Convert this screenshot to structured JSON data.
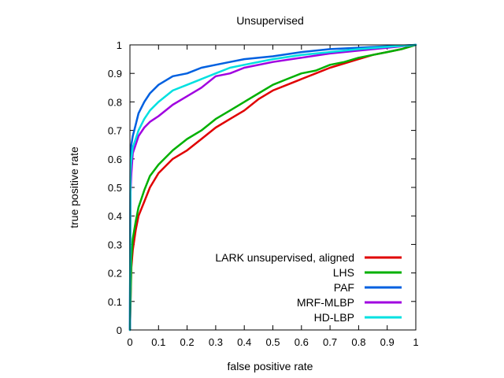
{
  "chart_data": {
    "type": "line",
    "title": "Unsupervised",
    "xlabel": "false positive rate",
    "ylabel": "true positive rate",
    "xlim": [
      0,
      1
    ],
    "ylim": [
      0,
      1
    ],
    "xticks": [
      "0",
      "0.1",
      "0.2",
      "0.3",
      "0.4",
      "0.5",
      "0.6",
      "0.7",
      "0.8",
      "0.9",
      "1"
    ],
    "yticks": [
      "0",
      "0.1",
      "0.2",
      "0.3",
      "0.4",
      "0.5",
      "0.6",
      "0.7",
      "0.8",
      "0.9",
      "1"
    ],
    "grid": false,
    "legend_position": "bottom-right",
    "series": [
      {
        "name": "LARK unsupervised, aligned",
        "color": "#e00000",
        "points": [
          [
            0,
            0
          ],
          [
            0.005,
            0.22
          ],
          [
            0.01,
            0.28
          ],
          [
            0.02,
            0.35
          ],
          [
            0.03,
            0.4
          ],
          [
            0.05,
            0.45
          ],
          [
            0.07,
            0.5
          ],
          [
            0.1,
            0.55
          ],
          [
            0.15,
            0.6
          ],
          [
            0.2,
            0.63
          ],
          [
            0.25,
            0.67
          ],
          [
            0.3,
            0.71
          ],
          [
            0.35,
            0.74
          ],
          [
            0.4,
            0.77
          ],
          [
            0.45,
            0.81
          ],
          [
            0.5,
            0.84
          ],
          [
            0.55,
            0.86
          ],
          [
            0.6,
            0.88
          ],
          [
            0.65,
            0.9
          ],
          [
            0.7,
            0.92
          ],
          [
            0.75,
            0.935
          ],
          [
            0.8,
            0.95
          ],
          [
            0.85,
            0.965
          ],
          [
            0.9,
            0.975
          ],
          [
            0.95,
            0.985
          ],
          [
            1.0,
            1.0
          ]
        ]
      },
      {
        "name": "LHS",
        "color": "#00b000",
        "points": [
          [
            0,
            0
          ],
          [
            0.005,
            0.25
          ],
          [
            0.01,
            0.32
          ],
          [
            0.02,
            0.38
          ],
          [
            0.03,
            0.43
          ],
          [
            0.05,
            0.49
          ],
          [
            0.07,
            0.54
          ],
          [
            0.1,
            0.58
          ],
          [
            0.15,
            0.63
          ],
          [
            0.2,
            0.67
          ],
          [
            0.25,
            0.7
          ],
          [
            0.3,
            0.74
          ],
          [
            0.35,
            0.77
          ],
          [
            0.4,
            0.8
          ],
          [
            0.45,
            0.83
          ],
          [
            0.5,
            0.86
          ],
          [
            0.55,
            0.88
          ],
          [
            0.6,
            0.9
          ],
          [
            0.65,
            0.91
          ],
          [
            0.7,
            0.93
          ],
          [
            0.75,
            0.94
          ],
          [
            0.8,
            0.955
          ],
          [
            0.85,
            0.965
          ],
          [
            0.9,
            0.975
          ],
          [
            0.95,
            0.985
          ],
          [
            1.0,
            1.0
          ]
        ]
      },
      {
        "name": "PAF",
        "color": "#0060e0",
        "points": [
          [
            0,
            0
          ],
          [
            0.002,
            0.6
          ],
          [
            0.005,
            0.65
          ],
          [
            0.01,
            0.68
          ],
          [
            0.02,
            0.72
          ],
          [
            0.03,
            0.76
          ],
          [
            0.05,
            0.8
          ],
          [
            0.07,
            0.83
          ],
          [
            0.1,
            0.86
          ],
          [
            0.15,
            0.89
          ],
          [
            0.2,
            0.9
          ],
          [
            0.25,
            0.92
          ],
          [
            0.3,
            0.93
          ],
          [
            0.35,
            0.94
          ],
          [
            0.4,
            0.95
          ],
          [
            0.5,
            0.96
          ],
          [
            0.6,
            0.975
          ],
          [
            0.7,
            0.985
          ],
          [
            0.8,
            0.99
          ],
          [
            0.9,
            0.995
          ],
          [
            1.0,
            1.0
          ]
        ]
      },
      {
        "name": "MRF-MLBP",
        "color": "#a000e0",
        "points": [
          [
            0,
            0
          ],
          [
            0.002,
            0.48
          ],
          [
            0.005,
            0.55
          ],
          [
            0.01,
            0.62
          ],
          [
            0.02,
            0.65
          ],
          [
            0.03,
            0.68
          ],
          [
            0.05,
            0.71
          ],
          [
            0.07,
            0.73
          ],
          [
            0.1,
            0.75
          ],
          [
            0.15,
            0.79
          ],
          [
            0.2,
            0.82
          ],
          [
            0.25,
            0.85
          ],
          [
            0.3,
            0.89
          ],
          [
            0.35,
            0.9
          ],
          [
            0.4,
            0.92
          ],
          [
            0.5,
            0.94
          ],
          [
            0.6,
            0.955
          ],
          [
            0.7,
            0.97
          ],
          [
            0.8,
            0.98
          ],
          [
            0.9,
            0.99
          ],
          [
            1.0,
            1.0
          ]
        ]
      },
      {
        "name": "HD-LBP",
        "color": "#00e0e0",
        "points": [
          [
            0,
            0
          ],
          [
            0.002,
            0.56
          ],
          [
            0.005,
            0.6
          ],
          [
            0.01,
            0.64
          ],
          [
            0.02,
            0.67
          ],
          [
            0.03,
            0.7
          ],
          [
            0.05,
            0.74
          ],
          [
            0.07,
            0.77
          ],
          [
            0.1,
            0.8
          ],
          [
            0.15,
            0.84
          ],
          [
            0.2,
            0.86
          ],
          [
            0.25,
            0.88
          ],
          [
            0.3,
            0.9
          ],
          [
            0.35,
            0.92
          ],
          [
            0.4,
            0.93
          ],
          [
            0.5,
            0.95
          ],
          [
            0.6,
            0.965
          ],
          [
            0.7,
            0.975
          ],
          [
            0.8,
            0.985
          ],
          [
            0.9,
            0.993
          ],
          [
            1.0,
            1.0
          ]
        ]
      }
    ]
  }
}
